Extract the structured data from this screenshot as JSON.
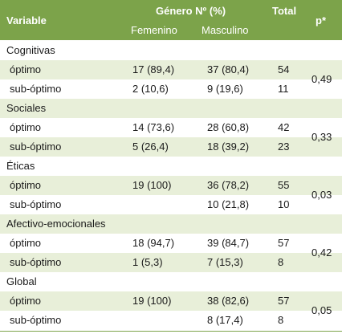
{
  "header": {
    "variable": "Variable",
    "genero": "Género Nº (%)",
    "femenino": "Femenino",
    "masculino": "Masculino",
    "total": "Total",
    "p": "p*"
  },
  "groups": [
    {
      "label": "Cognitivas",
      "p": "0,49",
      "rows": [
        {
          "label": "óptimo",
          "fem": "17 (89,4)",
          "masc": "37 (80,4)",
          "total": "54"
        },
        {
          "label": "sub-óptimo",
          "fem": "2 (10,6)",
          "masc": "9 (19,6)",
          "total": "11"
        }
      ]
    },
    {
      "label": "Sociales",
      "p": "0,33",
      "rows": [
        {
          "label": "óptimo",
          "fem": "14 (73,6)",
          "masc": "28 (60,8)",
          "total": "42"
        },
        {
          "label": "sub-óptimo",
          "fem": "5 (26,4)",
          "masc": "18 (39,2)",
          "total": "23"
        }
      ]
    },
    {
      "label": "Éticas",
      "p": "0,03",
      "rows": [
        {
          "label": "óptimo",
          "fem": "19 (100)",
          "masc": "36 (78,2)",
          "total": "55"
        },
        {
          "label": "sub-óptimo",
          "fem": "",
          "masc": "10 (21,8)",
          "total": "10"
        }
      ]
    },
    {
      "label": "Afectivo-emocionales",
      "p": "0,42",
      "rows": [
        {
          "label": "óptimo",
          "fem": "18 (94,7)",
          "masc": "39 (84,7)",
          "total": "57"
        },
        {
          "label": "sub-óptimo",
          "fem": "1 (5,3)",
          "masc": "7 (15,3)",
          "total": "8"
        }
      ]
    },
    {
      "label": "Global",
      "p": "0,05",
      "rows": [
        {
          "label": "óptimo",
          "fem": "19 (100)",
          "masc": "38 (82,6)",
          "total": "57"
        },
        {
          "label": "sub-óptimo",
          "fem": "",
          "masc": "8 (17,4)",
          "total": "8"
        }
      ]
    }
  ]
}
